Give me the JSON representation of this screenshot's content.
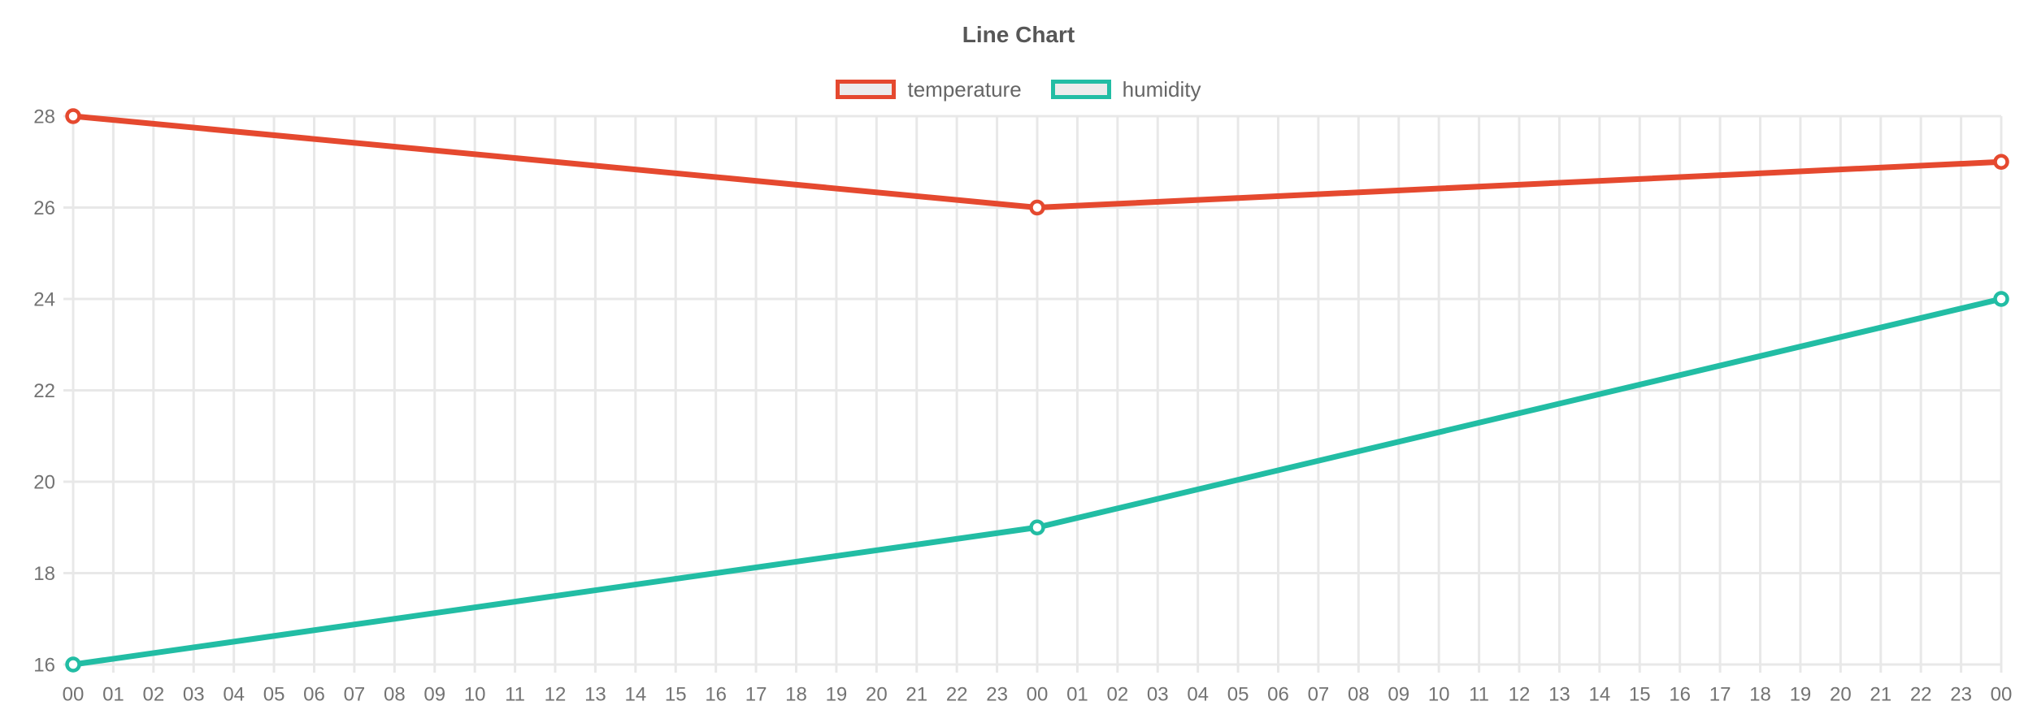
{
  "chart_data": {
    "type": "line",
    "title": "Line Chart",
    "x_labels": [
      "00",
      "01",
      "02",
      "03",
      "04",
      "05",
      "06",
      "07",
      "08",
      "09",
      "10",
      "11",
      "12",
      "13",
      "14",
      "15",
      "16",
      "17",
      "18",
      "19",
      "20",
      "21",
      "22",
      "23",
      "00",
      "01",
      "02",
      "03",
      "04",
      "05",
      "06",
      "07",
      "08",
      "09",
      "10",
      "11",
      "12",
      "13",
      "14",
      "15",
      "16",
      "17",
      "18",
      "19",
      "20",
      "21",
      "22",
      "23",
      "00"
    ],
    "y_ticks": [
      16,
      18,
      20,
      22,
      24,
      26,
      28
    ],
    "ylim": [
      16,
      28
    ],
    "grid": true,
    "legend_position": "top",
    "legend_swatch_fill": "#ececec",
    "grid_color": "#e8e8e8",
    "series": [
      {
        "name": "temperature",
        "color": "#e5492f",
        "x_indices": [
          0,
          24,
          48
        ],
        "values": [
          28,
          26,
          27
        ]
      },
      {
        "name": "humidity",
        "color": "#22bda4",
        "x_indices": [
          0,
          24,
          48
        ],
        "values": [
          16,
          19,
          24
        ]
      }
    ]
  }
}
